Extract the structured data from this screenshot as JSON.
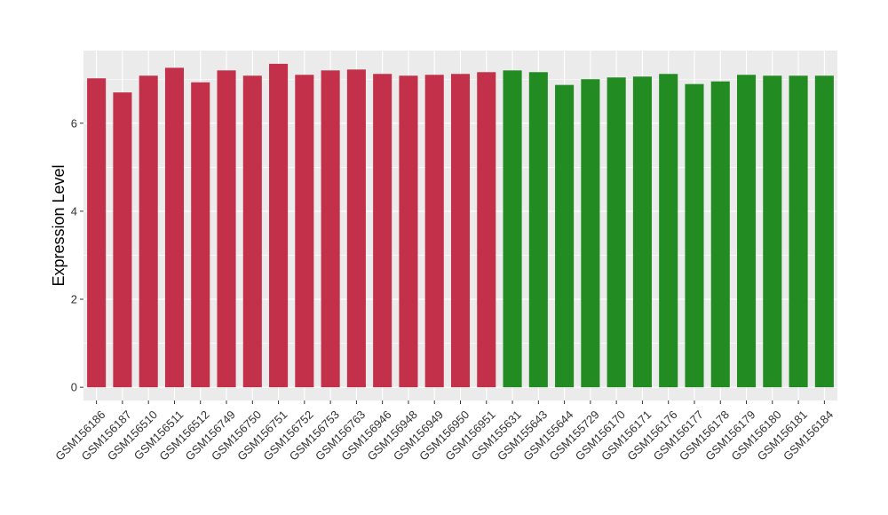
{
  "chart_data": {
    "type": "bar",
    "title": "",
    "xlabel": "",
    "ylabel": "Expression Level",
    "ylim": [
      -0.3,
      7.65
    ],
    "yticks": [
      0,
      2,
      4,
      6
    ],
    "grid": true,
    "legend": "none",
    "colors": {
      "panel_bg": "#ebebeb",
      "grid": "#ffffff",
      "red": "#c3304a",
      "green": "#228b22"
    },
    "categories": [
      "GSM156186",
      "GSM156187",
      "GSM156510",
      "GSM156511",
      "GSM156512",
      "GSM156749",
      "GSM156750",
      "GSM156751",
      "GSM156752",
      "GSM156753",
      "GSM156763",
      "GSM156946",
      "GSM156948",
      "GSM156949",
      "GSM156950",
      "GSM156951",
      "GSM155631",
      "GSM155643",
      "GSM155644",
      "GSM155729",
      "GSM156170",
      "GSM156171",
      "GSM156176",
      "GSM156177",
      "GSM156178",
      "GSM156179",
      "GSM156180",
      "GSM156181",
      "GSM156184"
    ],
    "values": [
      7.02,
      6.7,
      7.08,
      7.26,
      6.93,
      7.2,
      7.08,
      7.35,
      7.1,
      7.2,
      7.22,
      7.12,
      7.08,
      7.1,
      7.12,
      7.16,
      7.2,
      7.16,
      6.87,
      7.0,
      7.04,
      7.06,
      7.12,
      6.89,
      6.95,
      7.1,
      7.08,
      7.08,
      7.08
    ],
    "bar_colors": [
      "#c3304a",
      "#c3304a",
      "#c3304a",
      "#c3304a",
      "#c3304a",
      "#c3304a",
      "#c3304a",
      "#c3304a",
      "#c3304a",
      "#c3304a",
      "#c3304a",
      "#c3304a",
      "#c3304a",
      "#c3304a",
      "#c3304a",
      "#c3304a",
      "#228b22",
      "#228b22",
      "#228b22",
      "#228b22",
      "#228b22",
      "#228b22",
      "#228b22",
      "#228b22",
      "#228b22",
      "#228b22",
      "#228b22",
      "#228b22",
      "#228b22"
    ]
  }
}
